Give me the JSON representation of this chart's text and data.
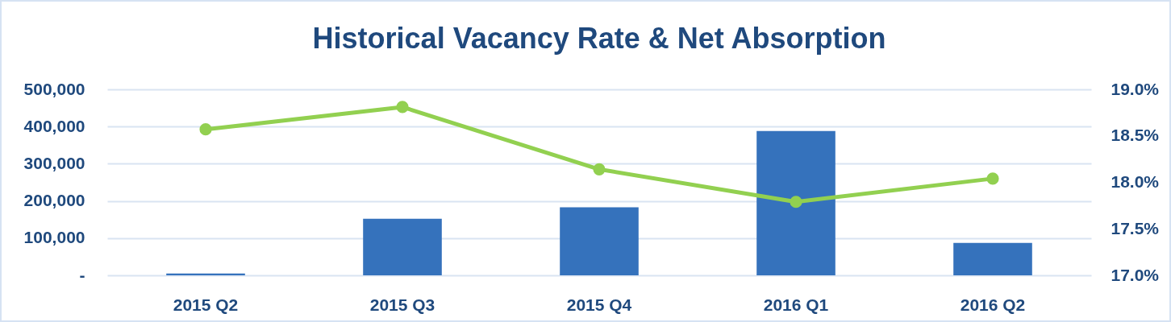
{
  "chart_data": {
    "type": "bar",
    "title": "Historical Vacancy Rate & Net Absorption",
    "categories": [
      "2015 Q2",
      "2015 Q3",
      "2015 Q4",
      "2016 Q1",
      "2016 Q2"
    ],
    "series": [
      {
        "color": "#3572bc",
        "values": [
          5000,
          152000,
          183000,
          388000,
          87000
        ]
      },
      {
        "type": "line",
        "axis": "y2",
        "color": "#92d050",
        "values": [
          18.57,
          18.81,
          18.14,
          17.79,
          18.04
        ]
      }
    ],
    "ylim": [
      0,
      500000
    ],
    "yticks": [
      {
        "value": 0,
        "label": "-"
      },
      {
        "value": 100000,
        "label": "100,000"
      },
      {
        "value": 200000,
        "label": "200,000"
      },
      {
        "value": 300000,
        "label": "300,000"
      },
      {
        "value": 400000,
        "label": "400,000"
      },
      {
        "value": 500000,
        "label": "500,000"
      }
    ],
    "y2lim": [
      17,
      19
    ],
    "y2ticks": [
      {
        "value": 17,
        "label": "17.0%"
      },
      {
        "value": 17.5,
        "label": "17.5%"
      },
      {
        "value": 18,
        "label": "18.0%"
      },
      {
        "value": 18.5,
        "label": "18.5%"
      },
      {
        "value": 19,
        "label": "19.0%"
      }
    ],
    "grid": "y",
    "legend": false,
    "marker": "circle"
  }
}
